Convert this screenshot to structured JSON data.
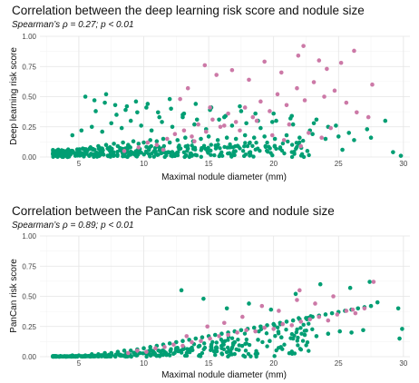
{
  "chart_data": [
    {
      "type": "scatter",
      "title": "Correlation between the deep learning risk score and nodule size",
      "subtitle": "Spearman’s ρ = 0.27; p < 0.01",
      "xlabel": "Maximal nodule diameter (mm)",
      "ylabel": "Deep learning risk score",
      "xlim": [
        2,
        30.5
      ],
      "ylim": [
        0,
        1
      ],
      "x_ticks": [
        5,
        10,
        15,
        20,
        25,
        30
      ],
      "y_ticks": [
        "0.00",
        "0.25",
        "0.50",
        "0.75",
        "1.00"
      ],
      "grid": true,
      "legend": "none",
      "colors": {
        "teal": "#009e73",
        "pink": "#cc79a7"
      },
      "series": [
        {
          "color": "#009e73",
          "x": [
            3.1,
            3.4,
            3.6,
            3.8,
            4.0,
            4.2,
            4.5,
            4.7,
            5.0,
            5.3,
            5.6,
            5.9,
            6.2,
            6.5,
            6.8,
            7.1,
            7.4,
            7.7,
            8.0,
            8.4,
            8.8,
            9.2,
            9.6,
            10.0,
            10.5,
            11.0,
            11.5,
            12.0,
            12.6,
            13.2,
            13.8,
            14.4,
            15.0,
            15.7,
            16.4,
            17.1,
            17.8,
            18.5,
            19.3,
            20.1,
            21.0,
            22.0,
            23.0,
            24.0,
            25.0,
            26.2,
            27.5,
            29.8,
            4.5,
            5.2,
            6.0,
            6.8,
            7.5,
            8.3,
            9.0,
            9.8,
            10.6,
            11.4,
            12.2,
            13.0,
            13.9,
            14.8,
            15.8,
            16.8,
            17.9,
            19.0,
            20.2,
            21.5,
            22.8,
            24.2,
            25.8,
            27.2,
            6.3,
            7.0,
            7.9,
            8.7,
            9.5,
            10.3,
            11.2,
            12.1,
            13.1,
            14.1,
            15.2,
            16.3,
            17.5,
            18.8,
            20.0,
            21.3,
            23.1,
            24.8,
            5.5,
            6.2,
            7.1,
            7.8,
            8.6,
            9.4,
            10.2,
            11.1,
            12.0,
            13.0,
            14.0,
            15.1,
            16.2,
            17.4,
            18.6,
            19.9,
            21.4,
            23.3,
            5.9,
            7.4,
            8.9,
            10.4,
            11.9,
            13.4,
            14.9,
            16.6,
            18.2,
            20.5,
            22.6,
            25.3,
            28.6,
            29.2
          ],
          "y": [
            0.01,
            0.02,
            0.01,
            0.03,
            0.02,
            0.04,
            0.05,
            0.03,
            0.06,
            0.07,
            0.05,
            0.08,
            0.06,
            0.09,
            0.07,
            0.1,
            0.08,
            0.11,
            0.09,
            0.12,
            0.1,
            0.13,
            0.11,
            0.12,
            0.14,
            0.13,
            0.15,
            0.12,
            0.14,
            0.16,
            0.13,
            0.15,
            0.17,
            0.14,
            0.16,
            0.15,
            0.18,
            0.16,
            0.17,
            0.15,
            0.18,
            0.16,
            0.19,
            0.15,
            0.17,
            0.14,
            0.16,
            0.01,
            0.18,
            0.22,
            0.25,
            0.21,
            0.28,
            0.24,
            0.3,
            0.26,
            0.22,
            0.29,
            0.25,
            0.33,
            0.27,
            0.23,
            0.31,
            0.26,
            0.28,
            0.24,
            0.3,
            0.27,
            0.22,
            0.25,
            0.2,
            0.23,
            0.38,
            0.45,
            0.35,
            0.42,
            0.37,
            0.44,
            0.33,
            0.4,
            0.36,
            0.31,
            0.41,
            0.34,
            0.38,
            0.3,
            0.36,
            0.32,
            0.28,
            0.26,
            0.5,
            0.47,
            0.52,
            0.43,
            0.39,
            0.46,
            0.41,
            0.37,
            0.48,
            0.35,
            0.44,
            0.39,
            0.33,
            0.42,
            0.36,
            0.29,
            0.34,
            0.31,
            0.02,
            0.05,
            0.03,
            0.06,
            0.04,
            0.07,
            0.05,
            0.08,
            0.04,
            0.07,
            0.05,
            0.06,
            0.3,
            0.04
          ]
        },
        {
          "color": "#cc79a7",
          "x": [
            8.5,
            9.6,
            10.3,
            11.0,
            11.8,
            12.4,
            13.1,
            13.7,
            14.2,
            14.8,
            15.3,
            15.9,
            16.5,
            17.1,
            17.8,
            18.4,
            19.0,
            19.7,
            20.3,
            21.0,
            21.8,
            22.4,
            23.1,
            23.9,
            24.7,
            25.6,
            26.4,
            27.3,
            14.7,
            15.6,
            16.8,
            18.1,
            19.3,
            20.6,
            21.9,
            22.3,
            23.5,
            24.1,
            25.2,
            26.2,
            27.6,
            13.4,
            12.8,
            15.1,
            16.2,
            17.4,
            18.7,
            19.9,
            21.2,
            22.7,
            24.4,
            13.9,
            11.5,
            20.8,
            22.1,
            23.7
          ],
          "y": [
            0.05,
            0.08,
            0.12,
            0.1,
            0.15,
            0.19,
            0.22,
            0.17,
            0.27,
            0.21,
            0.31,
            0.25,
            0.36,
            0.29,
            0.41,
            0.33,
            0.46,
            0.38,
            0.52,
            0.43,
            0.57,
            0.47,
            0.62,
            0.5,
            0.55,
            0.45,
            0.37,
            0.33,
            0.76,
            0.68,
            0.72,
            0.64,
            0.79,
            0.7,
            0.84,
            0.92,
            0.8,
            0.73,
            0.78,
            0.88,
            0.6,
            0.57,
            0.48,
            0.41,
            0.26,
            0.22,
            0.3,
            0.18,
            0.27,
            0.2,
            0.24,
            0.13,
            0.06,
            0.14,
            0.09,
            0.16
          ]
        }
      ]
    },
    {
      "type": "scatter",
      "title": "Correlation between the PanCan risk score and nodule size",
      "subtitle": "Spearman’s ρ = 0.89; p < 0.01",
      "xlabel": "Maximal nodule diameter (mm)",
      "ylabel": "PanCan risk score",
      "xlim": [
        2,
        30.5
      ],
      "ylim": [
        0,
        1
      ],
      "x_ticks": [
        5,
        10,
        15,
        20,
        25,
        30
      ],
      "y_ticks": [
        "0.00",
        "0.25",
        "0.50",
        "0.75",
        "1.00"
      ],
      "grid": true,
      "legend": "none",
      "colors": {
        "teal": "#009e73",
        "pink": "#cc79a7"
      },
      "series": [
        {
          "color": "#009e73",
          "x": [
            3.0,
            3.5,
            4.0,
            4.5,
            5.0,
            5.5,
            6.0,
            6.5,
            7.0,
            7.5,
            8.0,
            8.5,
            9.0,
            9.5,
            10.0,
            10.5,
            11.0,
            11.5,
            12.0,
            12.5,
            13.0,
            13.5,
            14.0,
            14.5,
            15.0,
            15.5,
            16.0,
            16.5,
            17.0,
            17.5,
            18.0,
            18.5,
            19.0,
            19.5,
            20.0,
            20.5,
            21.0,
            21.5,
            22.0,
            22.5,
            23.0,
            23.5,
            24.0,
            24.5,
            25.0,
            25.5,
            26.0,
            26.5,
            27.0,
            27.5,
            28.0,
            29.6,
            29.9,
            29.7,
            8.8,
            9.7,
            10.6,
            11.6,
            12.5,
            13.4,
            14.3,
            15.2,
            16.1,
            17.0,
            17.9,
            18.8,
            19.7,
            20.6,
            21.5,
            22.4,
            23.3,
            24.2,
            25.1,
            26.0,
            26.9,
            12.9,
            14.6,
            16.4,
            18.1,
            19.8,
            21.7,
            23.6,
            25.9,
            27.4
          ],
          "y": [
            0.0,
            0.0,
            0.0,
            0.01,
            0.01,
            0.01,
            0.02,
            0.02,
            0.03,
            0.03,
            0.04,
            0.05,
            0.05,
            0.06,
            0.07,
            0.08,
            0.09,
            0.1,
            0.11,
            0.12,
            0.13,
            0.14,
            0.15,
            0.16,
            0.17,
            0.18,
            0.19,
            0.2,
            0.21,
            0.22,
            0.23,
            0.24,
            0.25,
            0.26,
            0.27,
            0.28,
            0.29,
            0.3,
            0.31,
            0.32,
            0.33,
            0.34,
            0.35,
            0.36,
            0.37,
            0.38,
            0.39,
            0.4,
            0.41,
            0.42,
            0.45,
            0.4,
            0.23,
            0.15,
            0.02,
            0.03,
            0.05,
            0.04,
            0.07,
            0.06,
            0.09,
            0.08,
            0.1,
            0.12,
            0.11,
            0.14,
            0.13,
            0.16,
            0.15,
            0.18,
            0.17,
            0.19,
            0.21,
            0.2,
            0.22,
            0.55,
            0.48,
            0.4,
            0.44,
            0.39,
            0.52,
            0.6,
            0.57,
            0.62
          ]
        },
        {
          "color": "#cc79a7",
          "x": [
            8.8,
            9.5,
            10.2,
            10.9,
            11.6,
            12.3,
            13.0,
            13.7,
            14.4,
            15.1,
            15.8,
            16.5,
            17.2,
            17.9,
            18.6,
            19.3,
            20.0,
            20.7,
            21.4,
            22.1,
            22.8,
            23.5,
            24.2,
            24.9,
            25.6,
            26.3,
            27.0,
            27.7,
            19.1,
            20.4,
            21.8,
            23.2,
            24.6,
            26.1,
            22.0,
            17.6,
            16.2,
            14.9,
            13.3
          ],
          "y": [
            0.03,
            0.05,
            0.04,
            0.07,
            0.08,
            0.1,
            0.09,
            0.12,
            0.13,
            0.15,
            0.17,
            0.18,
            0.2,
            0.22,
            0.21,
            0.24,
            0.23,
            0.27,
            0.26,
            0.29,
            0.31,
            0.33,
            0.3,
            0.35,
            0.38,
            0.36,
            0.4,
            0.62,
            0.42,
            0.38,
            0.47,
            0.44,
            0.5,
            0.39,
            0.55,
            0.33,
            0.28,
            0.25,
            0.17
          ]
        }
      ]
    }
  ]
}
